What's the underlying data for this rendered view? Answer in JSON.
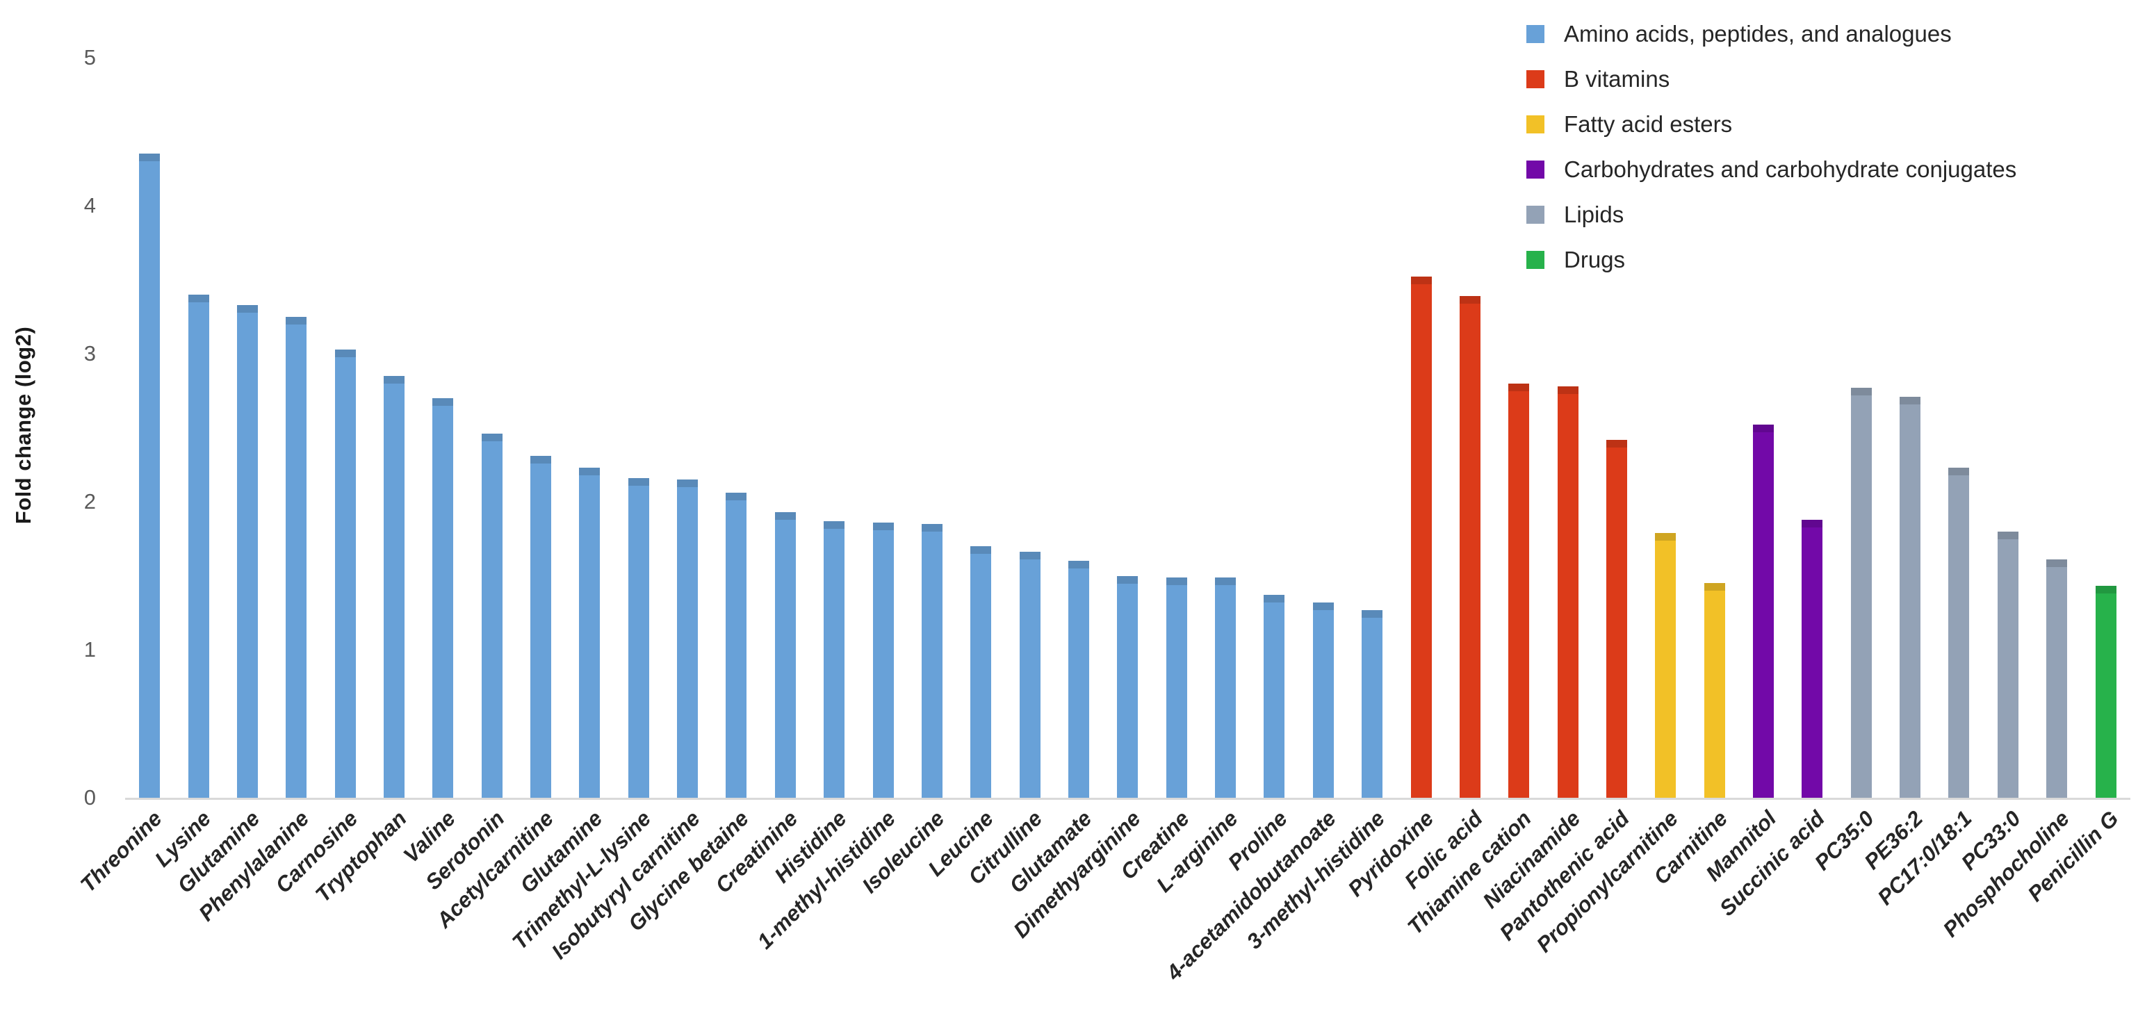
{
  "chart_data": {
    "type": "bar",
    "title": "",
    "xlabel": "",
    "ylabel": "Fold change (log2)",
    "ylim": [
      0,
      5
    ],
    "yticks": [
      0,
      1,
      2,
      3,
      4,
      5
    ],
    "grid": false,
    "legend_position": "top-right",
    "legend": [
      {
        "key": "amino",
        "label": "Amino acids, peptides, and analogues",
        "color": "#68A1D8"
      },
      {
        "key": "bvit",
        "label": "B vitamins",
        "color": "#DC3B19"
      },
      {
        "key": "fae",
        "label": "Fatty acid esters",
        "color": "#F2C127"
      },
      {
        "key": "carb",
        "label": "Carbohydrates and carbohydrate conjugates",
        "color": "#7209A8"
      },
      {
        "key": "lipid",
        "label": "Lipids",
        "color": "#93A2B6"
      },
      {
        "key": "drug",
        "label": "Drugs",
        "color": "#27B24B"
      }
    ],
    "points": [
      {
        "label": "Threonine",
        "value": 4.35,
        "group": "amino"
      },
      {
        "label": "Lysine",
        "value": 3.4,
        "group": "amino"
      },
      {
        "label": "Glutamine",
        "value": 3.33,
        "group": "amino"
      },
      {
        "label": "Phenylalanine",
        "value": 3.25,
        "group": "amino"
      },
      {
        "label": "Carnosine",
        "value": 3.03,
        "group": "amino"
      },
      {
        "label": "Tryptophan",
        "value": 2.85,
        "group": "amino"
      },
      {
        "label": "Valine",
        "value": 2.7,
        "group": "amino"
      },
      {
        "label": "Serotonin",
        "value": 2.46,
        "group": "amino"
      },
      {
        "label": "Acetylcarnitine",
        "value": 2.31,
        "group": "amino"
      },
      {
        "label": "Glutamine",
        "value": 2.23,
        "group": "amino"
      },
      {
        "label": "Trimethyl-L-lysine",
        "value": 2.16,
        "group": "amino"
      },
      {
        "label": "Isobutyryl carnitine",
        "value": 2.15,
        "group": "amino"
      },
      {
        "label": "Glycine betaine",
        "value": 2.06,
        "group": "amino"
      },
      {
        "label": "Creatinine",
        "value": 1.93,
        "group": "amino"
      },
      {
        "label": "Histidine",
        "value": 1.87,
        "group": "amino"
      },
      {
        "label": "1-methyl-histidine",
        "value": 1.86,
        "group": "amino"
      },
      {
        "label": "Isoleucine",
        "value": 1.85,
        "group": "amino"
      },
      {
        "label": "Leucine",
        "value": 1.7,
        "group": "amino"
      },
      {
        "label": "Citrulline",
        "value": 1.66,
        "group": "amino"
      },
      {
        "label": "Glutamate",
        "value": 1.6,
        "group": "amino"
      },
      {
        "label": "Dimethyarginine",
        "value": 1.5,
        "group": "amino"
      },
      {
        "label": "Creatine",
        "value": 1.49,
        "group": "amino"
      },
      {
        "label": "L-arginine",
        "value": 1.49,
        "group": "amino"
      },
      {
        "label": "Proline",
        "value": 1.37,
        "group": "amino"
      },
      {
        "label": "4-acetamidobutanoate",
        "value": 1.32,
        "group": "amino"
      },
      {
        "label": "3-methyl-histidine",
        "value": 1.27,
        "group": "amino"
      },
      {
        "label": "Pyridoxine",
        "value": 3.52,
        "group": "bvit"
      },
      {
        "label": "Folic acid",
        "value": 3.39,
        "group": "bvit"
      },
      {
        "label": "Thiamine cation",
        "value": 2.8,
        "group": "bvit"
      },
      {
        "label": "Niacinamide",
        "value": 2.78,
        "group": "bvit"
      },
      {
        "label": "Pantothenic acid",
        "value": 2.42,
        "group": "bvit"
      },
      {
        "label": "Propionylcarnitine",
        "value": 1.79,
        "group": "fae"
      },
      {
        "label": "Carnitine",
        "value": 1.45,
        "group": "fae"
      },
      {
        "label": "Mannitol",
        "value": 2.52,
        "group": "carb"
      },
      {
        "label": "Succinic acid",
        "value": 1.88,
        "group": "carb"
      },
      {
        "label": "PC35:0",
        "value": 2.77,
        "group": "lipid"
      },
      {
        "label": "PE36:2",
        "value": 2.71,
        "group": "lipid"
      },
      {
        "label": "PC17:0/18:1",
        "value": 2.23,
        "group": "lipid"
      },
      {
        "label": "PC33:0",
        "value": 1.8,
        "group": "lipid"
      },
      {
        "label": "Phosphocholine",
        "value": 1.61,
        "group": "lipid"
      },
      {
        "label": "Penicillin G",
        "value": 1.43,
        "group": "drug"
      }
    ]
  }
}
